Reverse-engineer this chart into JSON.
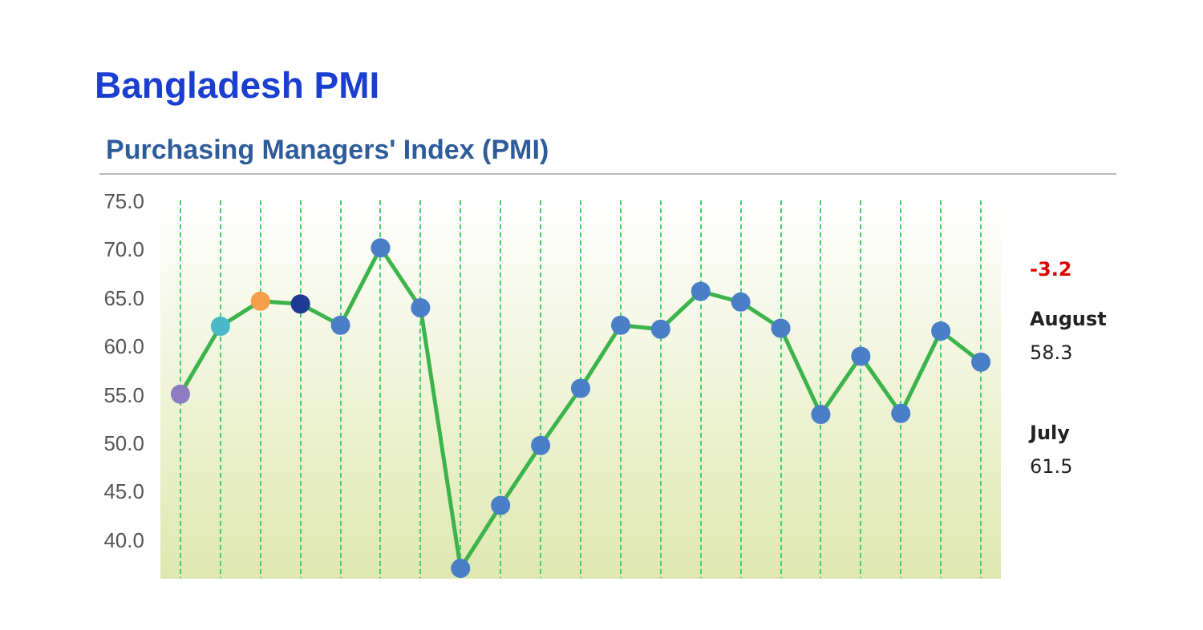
{
  "chart_data": {
    "type": "line",
    "title": "Bangladesh PMI",
    "subtitle": "Purchasing Managers' Index (PMI)",
    "categories": [
      null,
      null,
      null,
      null,
      null,
      null,
      null,
      null,
      null,
      null,
      null,
      null,
      null,
      null,
      null,
      null,
      null,
      null,
      null,
      null,
      null
    ],
    "series": [
      {
        "color": "#3cb44b",
        "colors": [
          "#8e7cc3",
          "#4bb8c8",
          "#f4a04a",
          "#1f3a93",
          "#4a7ec7",
          "#4a7ec7",
          "#4a7ec7",
          "#4a7ec7",
          "#4a7ec7",
          "#4a7ec7",
          "#4a7ec7",
          "#4a7ec7",
          "#4a7ec7",
          "#4a7ec7",
          "#4a7ec7",
          "#4a7ec7",
          "#4a7ec7",
          "#4a7ec7",
          "#4a7ec7",
          "#4a7ec7",
          "#4a7ec7"
        ],
        "values": [
          55.0,
          62.0,
          64.6,
          64.3,
          62.1,
          70.1,
          63.9,
          37.0,
          43.5,
          49.7,
          55.6,
          62.1,
          61.7,
          65.6,
          64.5,
          61.8,
          52.9,
          58.9,
          53.0,
          61.5,
          58.3
        ]
      }
    ],
    "ylim": [
      36,
      75
    ],
    "yticks": [
      {
        "value": 40,
        "label": "40.0"
      },
      {
        "value": 45,
        "label": "45.0"
      },
      {
        "value": 50,
        "label": "50.0"
      },
      {
        "value": 55,
        "label": "55.0"
      },
      {
        "value": 60,
        "label": "60.0"
      },
      {
        "value": 65,
        "label": "65.0"
      },
      {
        "value": 70,
        "label": "70.0"
      },
      {
        "value": 75,
        "label": "75.0"
      }
    ],
    "tick_labels": "y",
    "grid": "x",
    "legend": false,
    "marker": "circle",
    "line_style": "solid",
    "annotations": [
      "-3.2",
      "August",
      "58.3",
      "July",
      "61.5"
    ]
  }
}
